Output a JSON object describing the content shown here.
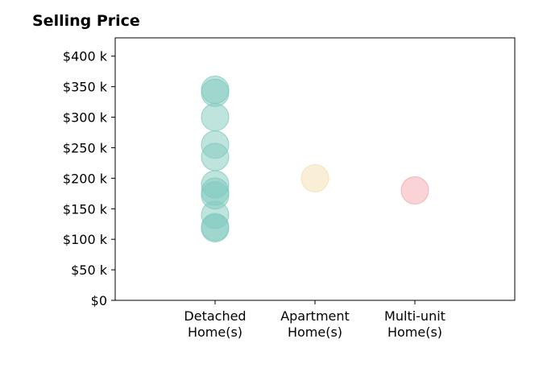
{
  "chart_data": {
    "type": "scatter",
    "title": "Selling Price",
    "xlabel": "",
    "ylabel": "",
    "categories": [
      [
        "Detached",
        "Home(s)"
      ],
      [
        "Apartment",
        "Home(s)"
      ],
      [
        "Multi-unit",
        "Home(s)"
      ]
    ],
    "series": [
      {
        "category_index": 0,
        "color": "#7fc9bd",
        "values": [
          345000,
          340000,
          300000,
          255000,
          235000,
          190000,
          178000,
          172000,
          140000,
          120000,
          118000
        ]
      },
      {
        "category_index": 1,
        "color": "#f3dfb0",
        "values": [
          200000
        ]
      },
      {
        "category_index": 2,
        "color": "#f3a7ad",
        "values": [
          180000
        ]
      }
    ],
    "ylim": [
      0,
      430000
    ],
    "yticks": [
      0,
      50000,
      100000,
      150000,
      200000,
      250000,
      300000,
      350000,
      400000
    ],
    "ytick_labels": [
      "$0",
      "$50 k",
      "$100 k",
      "$150 k",
      "$200 k",
      "$250 k",
      "$300 k",
      "$350 k",
      "$400 k"
    ],
    "grid": false,
    "legend": "none"
  }
}
